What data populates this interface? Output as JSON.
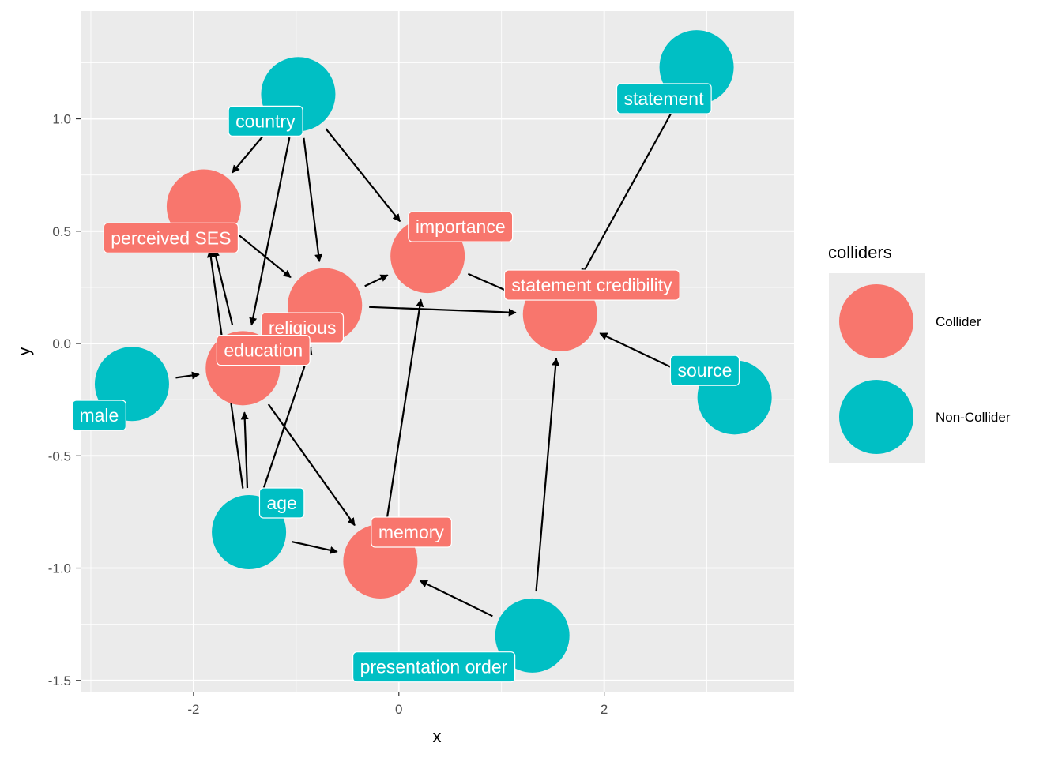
{
  "chart_data": {
    "type": "network",
    "xlabel": "x",
    "ylabel": "y",
    "xlim": [
      -3.1,
      3.85
    ],
    "ylim": [
      -1.55,
      1.48
    ],
    "x_ticks": [
      -2,
      0,
      2
    ],
    "x_tick_labels": [
      "-2",
      "0",
      "2"
    ],
    "y_ticks": [
      -1.5,
      -1.0,
      -0.5,
      0.0,
      0.5,
      1.0
    ],
    "y_tick_labels": [
      "-1.5",
      "-1.0",
      "-0.5",
      "0.0",
      "0.5",
      "1.0"
    ],
    "grid": true,
    "legend": {
      "title": "colliders",
      "position": "right",
      "entries": [
        {
          "label": "Collider",
          "color": "#F8766D"
        },
        {
          "label": "Non-Collider",
          "color": "#00BFC4"
        }
      ]
    },
    "colors": {
      "Collider": "#F8766D",
      "Non-Collider": "#00BFC4",
      "panel": "#EBEBEB",
      "grid": "#FFFFFF"
    },
    "nodes": [
      {
        "id": "country",
        "label": "country",
        "x": -0.98,
        "y": 1.11,
        "group": "Non-Collider",
        "label_x": -1.3,
        "label_y": 0.99
      },
      {
        "id": "statement",
        "label": "statement",
        "x": 2.9,
        "y": 1.23,
        "group": "Non-Collider",
        "label_x": 2.58,
        "label_y": 1.09
      },
      {
        "id": "perceived_ses",
        "label": "perceived SES",
        "x": -1.9,
        "y": 0.61,
        "group": "Collider",
        "label_x": -2.22,
        "label_y": 0.47
      },
      {
        "id": "importance",
        "label": "importance",
        "x": 0.28,
        "y": 0.39,
        "group": "Collider",
        "label_x": 0.6,
        "label_y": 0.52
      },
      {
        "id": "statement_credibility",
        "label": "statement credibility",
        "x": 1.57,
        "y": 0.13,
        "group": "Collider",
        "label_x": 1.88,
        "label_y": 0.26
      },
      {
        "id": "religious",
        "label": "religious",
        "x": -0.72,
        "y": 0.17,
        "group": "Collider",
        "label_x": -0.94,
        "label_y": 0.07
      },
      {
        "id": "education",
        "label": "education",
        "x": -1.52,
        "y": -0.11,
        "group": "Collider",
        "label_x": -1.32,
        "label_y": -0.03
      },
      {
        "id": "male",
        "label": "male",
        "x": -2.6,
        "y": -0.18,
        "group": "Non-Collider",
        "label_x": -2.92,
        "label_y": -0.32
      },
      {
        "id": "source",
        "label": "source",
        "x": 3.27,
        "y": -0.24,
        "group": "Non-Collider",
        "label_x": 2.98,
        "label_y": -0.12
      },
      {
        "id": "age",
        "label": "age",
        "x": -1.46,
        "y": -0.84,
        "group": "Non-Collider",
        "label_x": -1.14,
        "label_y": -0.71
      },
      {
        "id": "memory",
        "label": "memory",
        "x": -0.18,
        "y": -0.97,
        "group": "Collider",
        "label_x": 0.12,
        "label_y": -0.84
      },
      {
        "id": "presentation_order",
        "label": "presentation order",
        "x": 1.3,
        "y": -1.3,
        "group": "Non-Collider",
        "label_x": 0.34,
        "label_y": -1.44
      }
    ],
    "edges": [
      {
        "from": "country",
        "to": "perceived_ses"
      },
      {
        "from": "country",
        "to": "religious"
      },
      {
        "from": "country",
        "to": "importance"
      },
      {
        "from": "country",
        "to": "education"
      },
      {
        "from": "statement",
        "to": "statement_credibility"
      },
      {
        "from": "perceived_ses",
        "to": "religious"
      },
      {
        "from": "religious",
        "to": "importance"
      },
      {
        "from": "religious",
        "to": "statement_credibility"
      },
      {
        "from": "importance",
        "to": "statement_credibility"
      },
      {
        "from": "education",
        "to": "perceived_ses"
      },
      {
        "from": "education",
        "to": "memory"
      },
      {
        "from": "male",
        "to": "education"
      },
      {
        "from": "source",
        "to": "statement_credibility"
      },
      {
        "from": "age",
        "to": "education"
      },
      {
        "from": "age",
        "to": "perceived_ses"
      },
      {
        "from": "age",
        "to": "religious"
      },
      {
        "from": "age",
        "to": "memory"
      },
      {
        "from": "memory",
        "to": "importance"
      },
      {
        "from": "presentation_order",
        "to": "memory"
      },
      {
        "from": "presentation_order",
        "to": "statement_credibility"
      }
    ]
  }
}
